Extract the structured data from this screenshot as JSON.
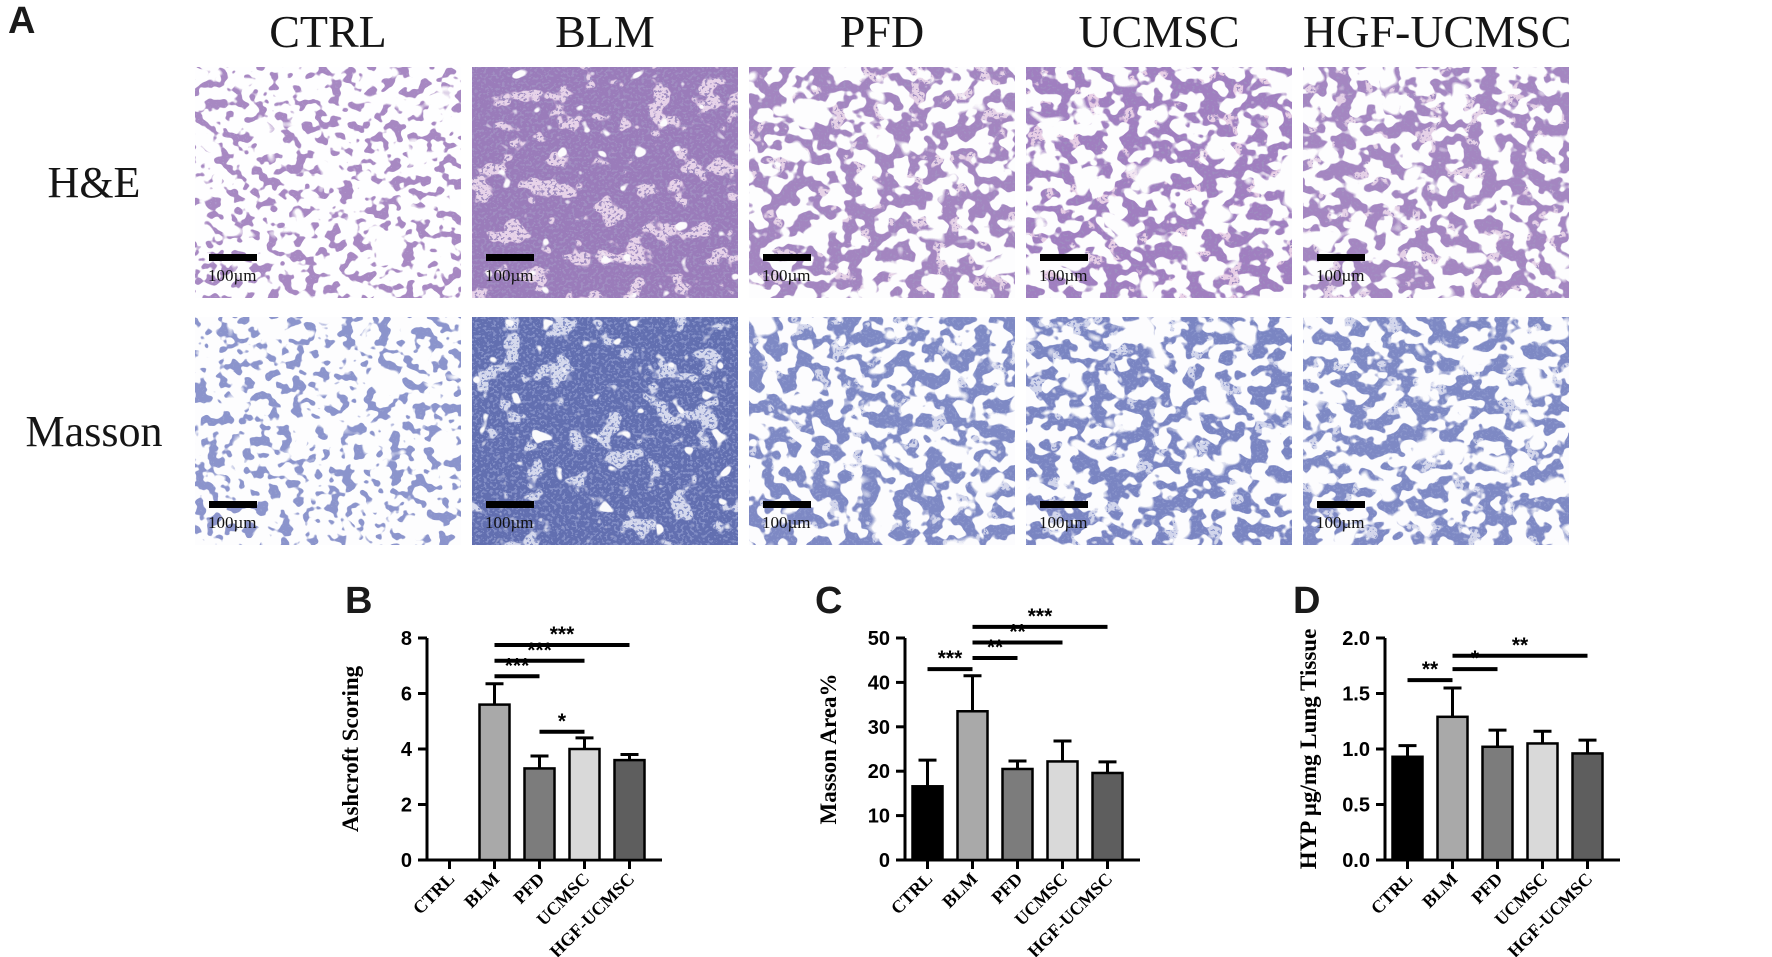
{
  "panel_a": {
    "label": "A",
    "column_headers": [
      "CTRL",
      "BLM",
      "PFD",
      "UCMSC",
      "HGF-UCMSC"
    ],
    "row_labels": [
      "H&E",
      "Masson"
    ],
    "scale_bar_label": "100µm",
    "images": [
      {
        "row": "H&E",
        "group": "CTRL",
        "density": "sparse",
        "seed": 3,
        "palette": {
          "wall": "#a788c2",
          "accent": "",
          "nuclei": "#6a4f96",
          "hole": "#fdfcfe"
        }
      },
      {
        "row": "H&E",
        "group": "BLM",
        "density": "dense",
        "seed": 11,
        "palette": {
          "wall": "#9a7cba",
          "accent": "#cba6cf",
          "nuclei": "#5a4488",
          "hole": "#f8f6fa"
        }
      },
      {
        "row": "H&E",
        "group": "PFD",
        "density": "medium",
        "seed": 21,
        "palette": {
          "wall": "#a385c0",
          "accent": "#c9a4cc",
          "nuclei": "#5d4689",
          "hole": "#fbfafc"
        }
      },
      {
        "row": "H&E",
        "group": "UCMSC",
        "density": "medium",
        "seed": 34,
        "palette": {
          "wall": "#a07fc0",
          "accent": "#cd9fc9",
          "nuclei": "#584387",
          "hole": "#fbfafc"
        }
      },
      {
        "row": "H&E",
        "group": "HGF-UCMSC",
        "density": "medium",
        "seed": 47,
        "palette": {
          "wall": "#a486c1",
          "accent": "#c7a3cb",
          "nuclei": "#5d4689",
          "hole": "#fbfafc"
        }
      },
      {
        "row": "Masson",
        "group": "CTRL",
        "density": "sparse",
        "seed": 55,
        "palette": {
          "wall": "#8b94cc",
          "accent": "",
          "nuclei": "#4d59a0",
          "hole": "#fbfbfd"
        }
      },
      {
        "row": "Masson",
        "group": "BLM",
        "density": "dense",
        "seed": 62,
        "palette": {
          "wall": "#626fb0",
          "accent": "#aab1d8",
          "nuclei": "#3a4690",
          "hole": "#f4f4f9"
        }
      },
      {
        "row": "Masson",
        "group": "PFD",
        "density": "medium",
        "seed": 73,
        "palette": {
          "wall": "#7e89c4",
          "accent": "#a7aed6",
          "nuclei": "#434f9a",
          "hole": "#f9f9fc"
        }
      },
      {
        "row": "Masson",
        "group": "UCMSC",
        "density": "medium",
        "seed": 86,
        "palette": {
          "wall": "#7a85c2",
          "accent": "#a4abd5",
          "nuclei": "#404c98",
          "hole": "#f9f9fc"
        }
      },
      {
        "row": "Masson",
        "group": "HGF-UCMSC",
        "density": "medium",
        "seed": 95,
        "palette": {
          "wall": "#7e89c4",
          "accent": "#a7aed6",
          "nuclei": "#434f9a",
          "hole": "#f9f9fc"
        }
      }
    ]
  },
  "chart_data": [
    {
      "panel": "B",
      "type": "bar",
      "ylabel": "Ashcroft Scoring",
      "categories": [
        "CTRL",
        "BLM",
        "PFD",
        "UCMSC",
        "HGF-UCMSC"
      ],
      "values": [
        0,
        5.6,
        3.3,
        4.0,
        3.6
      ],
      "errors": [
        0,
        0.75,
        0.45,
        0.4,
        0.2
      ],
      "ylim": [
        0,
        8
      ],
      "yticks": [
        0,
        2,
        4,
        6,
        8
      ],
      "ytick_labels": [
        "0",
        "2",
        "4",
        "6",
        "8"
      ],
      "grid": false,
      "bar_colors": [
        "#000000",
        "#a9a9a9",
        "#7c7c7c",
        "#d9d9d9",
        "#5e5e5e"
      ],
      "bar_outline": "#000000",
      "significance": [
        {
          "groups": [
            "BLM",
            "PFD"
          ],
          "label": "***",
          "y": 6.62
        },
        {
          "groups": [
            "BLM",
            "UCMSC"
          ],
          "label": "***",
          "y": 7.18
        },
        {
          "groups": [
            "BLM",
            "HGF-UCMSC"
          ],
          "label": "***",
          "y": 7.75
        },
        {
          "groups": [
            "PFD",
            "UCMSC"
          ],
          "label": "*",
          "y": 4.62
        }
      ]
    },
    {
      "panel": "C",
      "type": "bar",
      "ylabel": "Masson Area%",
      "categories": [
        "CTRL",
        "BLM",
        "PFD",
        "UCMSC",
        "HGF-UCMSC"
      ],
      "values": [
        16.6,
        33.5,
        20.5,
        22.2,
        19.6
      ],
      "errors": [
        5.9,
        8.0,
        1.8,
        4.6,
        2.5
      ],
      "ylim": [
        0,
        50
      ],
      "yticks": [
        0,
        10,
        20,
        30,
        40,
        50
      ],
      "ytick_labels": [
        "0",
        "10",
        "20",
        "30",
        "40",
        "50"
      ],
      "grid": false,
      "bar_colors": [
        "#000000",
        "#a9a9a9",
        "#7c7c7c",
        "#d9d9d9",
        "#5e5e5e"
      ],
      "bar_outline": "#000000",
      "significance": [
        {
          "groups": [
            "CTRL",
            "BLM"
          ],
          "label": "***",
          "y": 43
        },
        {
          "groups": [
            "BLM",
            "PFD"
          ],
          "label": "**",
          "y": 45.5
        },
        {
          "groups": [
            "BLM",
            "UCMSC"
          ],
          "label": "**",
          "y": 49
        },
        {
          "groups": [
            "BLM",
            "HGF-UCMSC"
          ],
          "label": "***",
          "y": 52.5
        }
      ]
    },
    {
      "panel": "D",
      "type": "bar",
      "ylabel": "HYP µg/mg Lung Tissue",
      "categories": [
        "CTRL",
        "BLM",
        "PFD",
        "UCMSC",
        "HGF-UCMSC"
      ],
      "values": [
        0.93,
        1.29,
        1.02,
        1.05,
        0.96
      ],
      "errors": [
        0.1,
        0.26,
        0.15,
        0.11,
        0.12
      ],
      "ylim": [
        0,
        2.0
      ],
      "yticks": [
        0,
        0.5,
        1.0,
        1.5,
        2.0
      ],
      "ytick_labels": [
        "0.0",
        "0.5",
        "1.0",
        "1.5",
        "2.0"
      ],
      "grid": false,
      "bar_colors": [
        "#000000",
        "#a9a9a9",
        "#7c7c7c",
        "#d9d9d9",
        "#5e5e5e"
      ],
      "bar_outline": "#000000",
      "significance": [
        {
          "groups": [
            "CTRL",
            "BLM"
          ],
          "label": "**",
          "y": 1.62
        },
        {
          "groups": [
            "BLM",
            "PFD"
          ],
          "label": "*",
          "y": 1.72
        },
        {
          "groups": [
            "BLM",
            "HGF-UCMSC"
          ],
          "label": "**",
          "y": 1.84
        }
      ]
    }
  ]
}
